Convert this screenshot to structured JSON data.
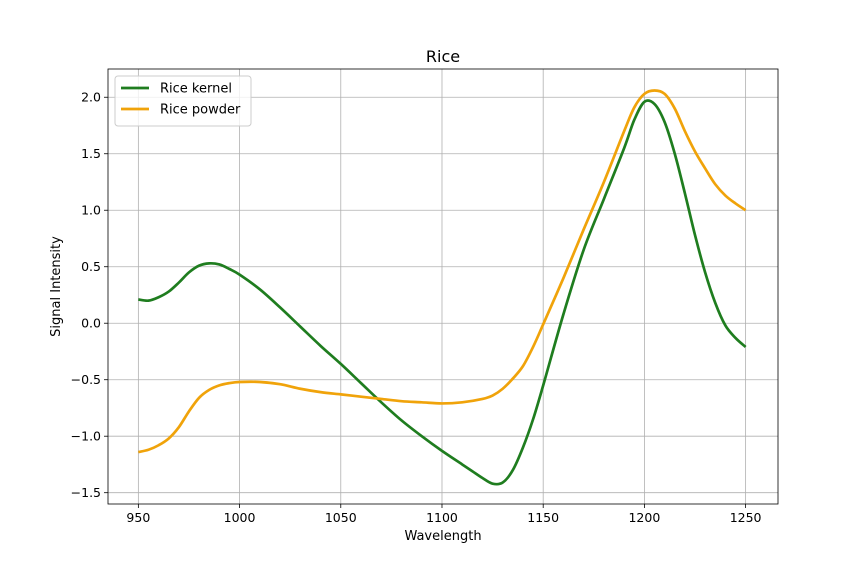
{
  "chart_data": {
    "type": "line",
    "title": "Rice",
    "xlabel": "Wavelength",
    "ylabel": "Signal Intensity",
    "xlim": [
      935,
      1266
    ],
    "ylim": [
      -1.6,
      2.25
    ],
    "xticks": [
      950,
      1000,
      1050,
      1100,
      1150,
      1200,
      1250
    ],
    "xtick_labels": [
      "950",
      "1000",
      "1050",
      "1100",
      "1150",
      "1200",
      "1250"
    ],
    "yticks": [
      -1.5,
      -1.0,
      -0.5,
      0.0,
      0.5,
      1.0,
      1.5,
      2.0
    ],
    "ytick_labels": [
      "−1.5",
      "−1.0",
      "−0.5",
      "0.0",
      "0.5",
      "1.0",
      "1.5",
      "2.0"
    ],
    "grid": true,
    "legend_position": "top-left",
    "series": [
      {
        "name": "Rice kernel",
        "color": "#1f7d1f",
        "x": [
          950,
          955,
          960,
          965,
          970,
          975,
          980,
          985,
          990,
          995,
          1000,
          1010,
          1020,
          1030,
          1040,
          1050,
          1060,
          1070,
          1080,
          1090,
          1100,
          1110,
          1115,
          1120,
          1125,
          1130,
          1135,
          1140,
          1145,
          1150,
          1160,
          1170,
          1180,
          1190,
          1195,
          1200,
          1205,
          1210,
          1215,
          1220,
          1225,
          1230,
          1235,
          1240,
          1245,
          1250
        ],
        "y": [
          0.21,
          0.2,
          0.23,
          0.28,
          0.36,
          0.45,
          0.51,
          0.53,
          0.52,
          0.48,
          0.43,
          0.3,
          0.14,
          -0.03,
          -0.2,
          -0.36,
          -0.53,
          -0.7,
          -0.86,
          -1.0,
          -1.13,
          -1.25,
          -1.31,
          -1.37,
          -1.42,
          -1.41,
          -1.3,
          -1.1,
          -0.85,
          -0.55,
          0.08,
          0.65,
          1.1,
          1.55,
          1.8,
          1.96,
          1.94,
          1.78,
          1.5,
          1.15,
          0.78,
          0.45,
          0.18,
          -0.02,
          -0.13,
          -0.21
        ]
      },
      {
        "name": "Rice powder",
        "color": "#f0a30a",
        "x": [
          950,
          955,
          960,
          965,
          970,
          975,
          980,
          985,
          990,
          995,
          1000,
          1010,
          1020,
          1030,
          1040,
          1050,
          1060,
          1070,
          1080,
          1090,
          1100,
          1110,
          1120,
          1125,
          1130,
          1135,
          1140,
          1145,
          1150,
          1160,
          1170,
          1180,
          1190,
          1195,
          1200,
          1205,
          1210,
          1215,
          1220,
          1225,
          1230,
          1235,
          1240,
          1245,
          1250
        ],
        "y": [
          -1.14,
          -1.12,
          -1.08,
          -1.02,
          -0.92,
          -0.78,
          -0.66,
          -0.59,
          -0.55,
          -0.53,
          -0.52,
          -0.52,
          -0.54,
          -0.58,
          -0.61,
          -0.63,
          -0.65,
          -0.67,
          -0.69,
          -0.7,
          -0.71,
          -0.7,
          -0.67,
          -0.64,
          -0.58,
          -0.49,
          -0.38,
          -0.21,
          -0.01,
          0.4,
          0.83,
          1.25,
          1.7,
          1.91,
          2.03,
          2.06,
          2.03,
          1.9,
          1.7,
          1.52,
          1.37,
          1.23,
          1.13,
          1.06,
          1.0
        ]
      }
    ]
  }
}
